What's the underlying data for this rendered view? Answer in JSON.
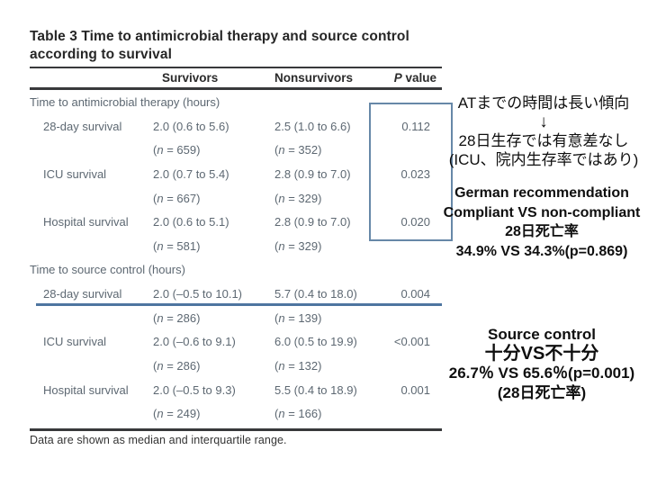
{
  "slide": {
    "table": {
      "title": "Table 3 Time to antimicrobial therapy and source control according to survival",
      "columns": {
        "survivors": "Survivors",
        "nonsurvivors": "Nonsurvivors",
        "p_value": "P value"
      },
      "rows": [
        {
          "type": "section",
          "label": "Time to antimicrobial therapy (hours)"
        },
        {
          "type": "data",
          "label": "28-day survival",
          "survivors": "2.0 (0.6 to 5.6)",
          "nonsurvivors": "2.5 (1.0 to 6.6)",
          "p": "0.112"
        },
        {
          "type": "sub",
          "label": "",
          "survivors": "(n = 659)",
          "nonsurvivors": "(n = 352)",
          "p": ""
        },
        {
          "type": "data",
          "label": "ICU survival",
          "survivors": "2.0 (0.7 to 5.4)",
          "nonsurvivors": "2.8 (0.9 to 7.0)",
          "p": "0.023"
        },
        {
          "type": "sub",
          "label": "",
          "survivors": "(n = 667)",
          "nonsurvivors": "(n = 329)",
          "p": ""
        },
        {
          "type": "data",
          "label": "Hospital survival",
          "survivors": "2.0 (0.6 to 5.1)",
          "nonsurvivors": "2.8 (0.9 to 7.0)",
          "p": "0.020"
        },
        {
          "type": "sub",
          "label": "",
          "survivors": "(n = 581)",
          "nonsurvivors": "(n = 329)",
          "p": ""
        },
        {
          "type": "section",
          "label": "Time to source control (hours)"
        },
        {
          "type": "data",
          "label": "28-day survival",
          "survivors": "2.0 (–0.5 to 10.1)",
          "nonsurvivors": "5.7 (0.4 to 18.0)",
          "p": "0.004"
        },
        {
          "type": "sub",
          "label": "",
          "survivors": "(n = 286)",
          "nonsurvivors": "(n = 139)",
          "p": ""
        },
        {
          "type": "data",
          "label": "ICU survival",
          "survivors": "2.0 (–0.6 to 9.1)",
          "nonsurvivors": "6.0 (0.5 to 19.9)",
          "p": "<0.001"
        },
        {
          "type": "sub",
          "label": "",
          "survivors": "(n = 286)",
          "nonsurvivors": "(n = 132)",
          "p": ""
        },
        {
          "type": "data",
          "label": "Hospital survival",
          "survivors": "2.0 (–0.5 to 9.3)",
          "nonsurvivors": "5.5 (0.4 to 18.9)",
          "p": "0.001"
        },
        {
          "type": "sub",
          "label": "",
          "survivors": "(n = 249)",
          "nonsurvivors": "(n = 166)",
          "p": ""
        }
      ],
      "footnote": "Data are shown as median and interquartile range."
    },
    "annotations": {
      "antimicrobial_note": {
        "lines": [
          "ATまでの時間は長い傾向",
          "↓",
          "28日生存では有意差なし",
          "(ICU、院内生存率ではあり)"
        ]
      },
      "german_recommendation_note": {
        "lines": [
          "German recommendation",
          "Compliant VS non-compliant",
          "28日死亡率",
          "34.9% VS 34.3%(p=0.869)"
        ]
      },
      "source_control_note": {
        "lines": [
          "Source control",
          "十分VS不十分",
          "26.7％ VS 65.6％(p=0.001)",
          "(28日死亡率)"
        ]
      }
    },
    "highlight": {
      "p_value_box_color": "#6788a8",
      "divider_line_color": "#4e75a0"
    }
  }
}
